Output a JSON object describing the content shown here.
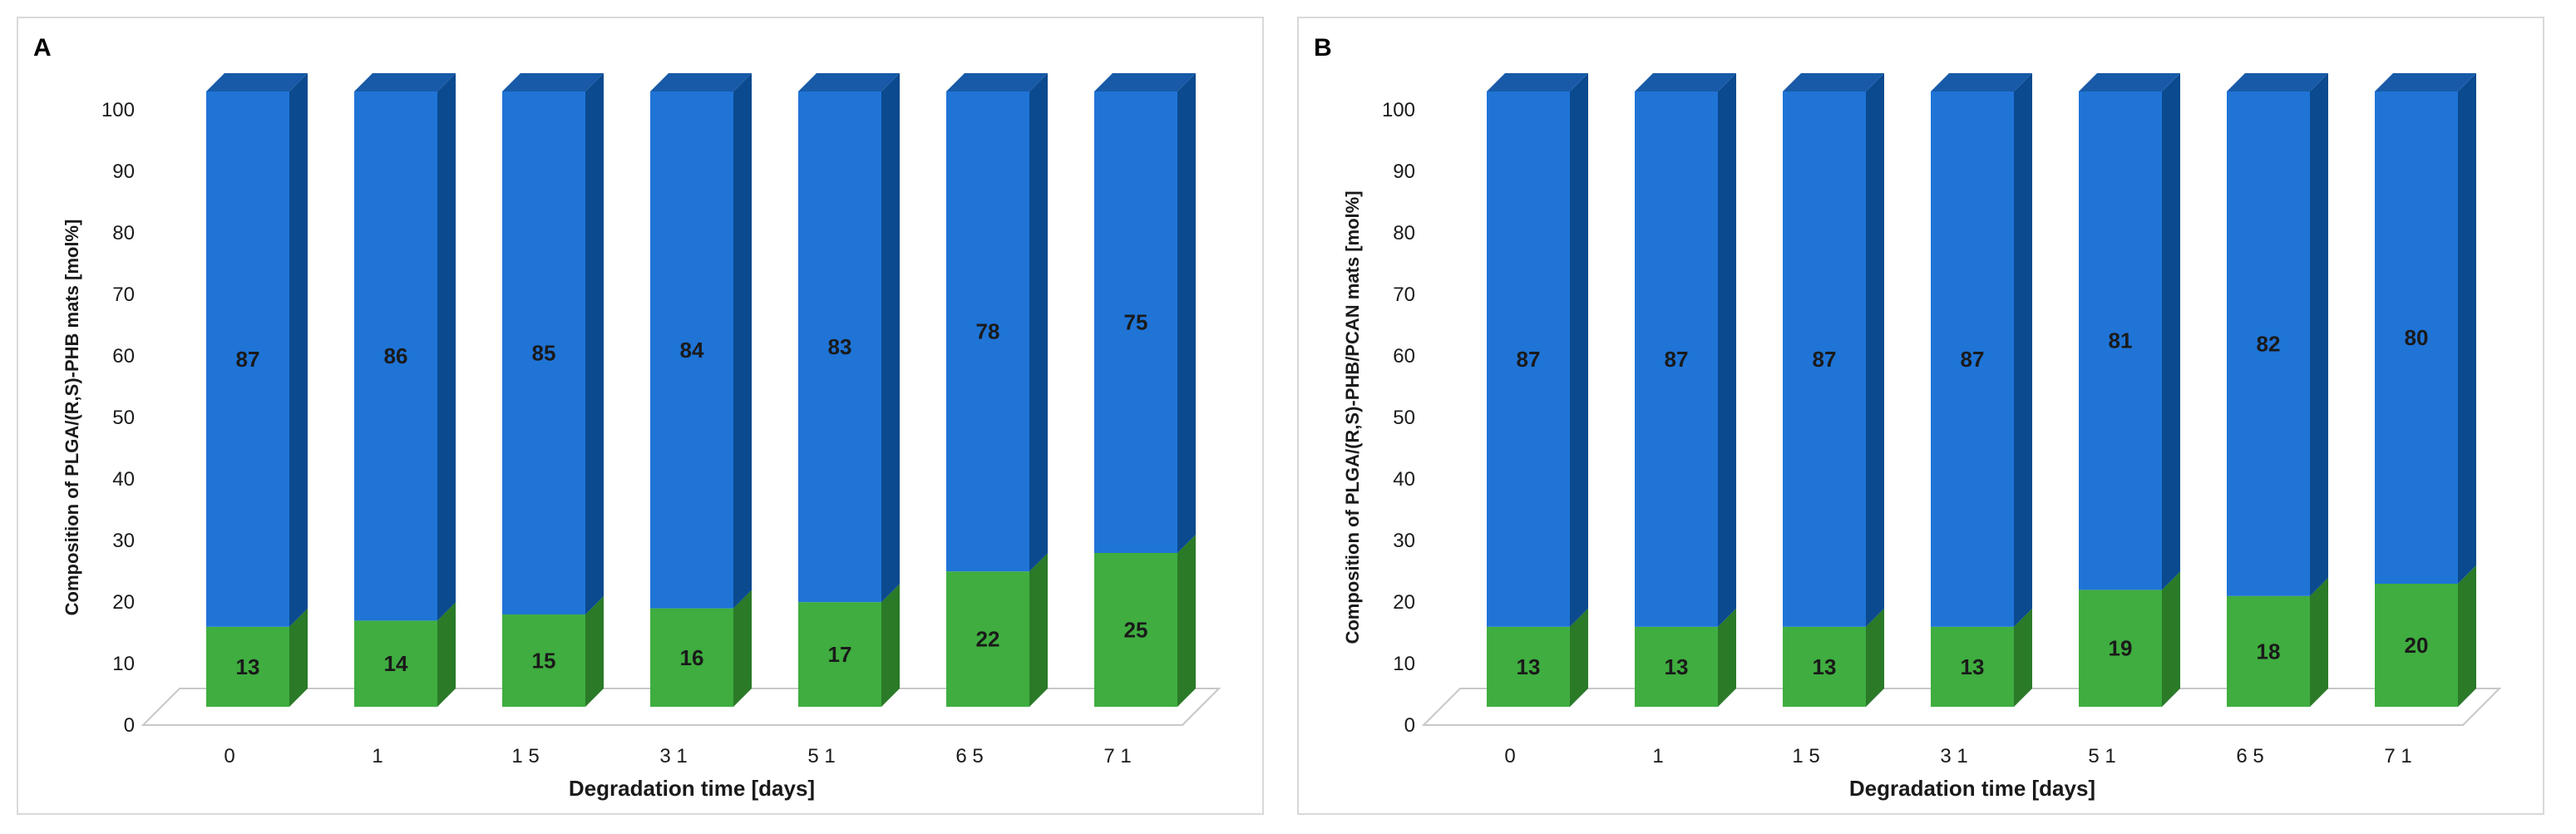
{
  "chart_data": [
    {
      "type": "bar",
      "stacked": true,
      "panel_label": "A",
      "title": "",
      "xlabel": "Degradation time [days]",
      "ylabel": "Composition of PLGA/(R,S)-PHB mats [mol%]",
      "categories": [
        "0",
        "1",
        "15",
        "31",
        "51",
        "65",
        "71"
      ],
      "category_tick_labels": [
        "0",
        "1",
        "1 5",
        "3 1",
        "5 1",
        "6 5",
        "7 1"
      ],
      "ylim": [
        0,
        100
      ],
      "yticks": [
        "0",
        "10",
        "20",
        "30",
        "40",
        "50",
        "60",
        "70",
        "80",
        "90",
        "100"
      ],
      "grid": false,
      "series": [
        {
          "name": "lower (green)",
          "values": [
            13,
            14,
            15,
            16,
            17,
            22,
            25
          ]
        },
        {
          "name": "upper (blue)",
          "values": [
            87,
            86,
            85,
            84,
            83,
            78,
            75
          ]
        }
      ]
    },
    {
      "type": "bar",
      "stacked": true,
      "panel_label": "B",
      "title": "",
      "xlabel": "Degradation time [days]",
      "ylabel": "Composition of PLGA/(R,S)-PHB/PCAN mats [mol%]",
      "categories": [
        "0",
        "1",
        "15",
        "31",
        "51",
        "65",
        "71"
      ],
      "category_tick_labels": [
        "0",
        "1",
        "1 5",
        "3 1",
        "5 1",
        "6 5",
        "7 1"
      ],
      "ylim": [
        0,
        100
      ],
      "yticks": [
        "0",
        "10",
        "20",
        "30",
        "40",
        "50",
        "60",
        "70",
        "80",
        "90",
        "100"
      ],
      "grid": false,
      "series": [
        {
          "name": "lower (green)",
          "values": [
            13,
            13,
            13,
            13,
            19,
            18,
            20
          ]
        },
        {
          "name": "upper (blue)",
          "values": [
            87,
            87,
            87,
            87,
            81,
            82,
            80
          ]
        }
      ]
    }
  ],
  "colors": {
    "green_front": "#3fad3f",
    "green_side": "#2a7a28",
    "green_top": "#55c44c",
    "blue_front": "#1f74d6",
    "blue_side": "#0b4a8f",
    "blue_top": "#185aa8",
    "text": "#1a1a1a",
    "floor": "#c8c8c8"
  }
}
